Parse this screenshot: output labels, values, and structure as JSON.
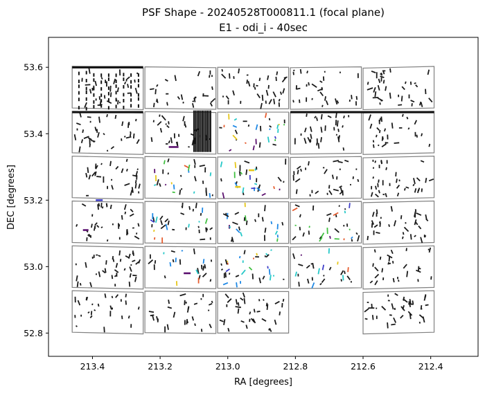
{
  "chart_data": {
    "type": "scatter",
    "title": "PSF Shape - 20240528T000811.1 (focal plane)",
    "subtitle": "E1 - odi_i - 40sec",
    "xlabel": "RA [degrees]",
    "ylabel": "DEC [degrees]",
    "xlim": [
      213.53,
      212.26
    ],
    "ylim": [
      52.73,
      53.69
    ],
    "x_inverted": true,
    "xticks": [
      213.4,
      213.2,
      213.0,
      212.8,
      212.6,
      212.4
    ],
    "xtick_labels": [
      "213.4",
      "213.2",
      "213.0",
      "212.8",
      "212.6",
      "212.4"
    ],
    "yticks": [
      52.8,
      53.0,
      53.2,
      53.4,
      53.6
    ],
    "ytick_labels": [
      "52.8",
      "53.0",
      "53.2",
      "53.4",
      "53.6"
    ],
    "grid": false,
    "ota_columns_ra": [
      [
        213.46,
        213.25
      ],
      [
        213.245,
        213.035
      ],
      [
        213.03,
        212.82
      ],
      [
        212.815,
        212.605
      ],
      [
        212.6,
        212.39
      ]
    ],
    "ota_rows_dec": [
      [
        53.6,
        53.475
      ],
      [
        53.465,
        53.34
      ],
      [
        53.33,
        53.205
      ],
      [
        53.195,
        53.07
      ],
      [
        53.06,
        52.935
      ],
      [
        52.925,
        52.8
      ]
    ],
    "missing_otas": [
      [
        5,
        3
      ]
    ],
    "segment_colors": {
      "default": "#1a1a1a",
      "high_e1": "#5a0f6e",
      "mid_high": "#3d3dc8",
      "mid": "#1e88e5",
      "mid_low": "#25c8c8",
      "low": "#40c040",
      "lowest": "#e6c619",
      "negative": "#e65c2e"
    }
  }
}
